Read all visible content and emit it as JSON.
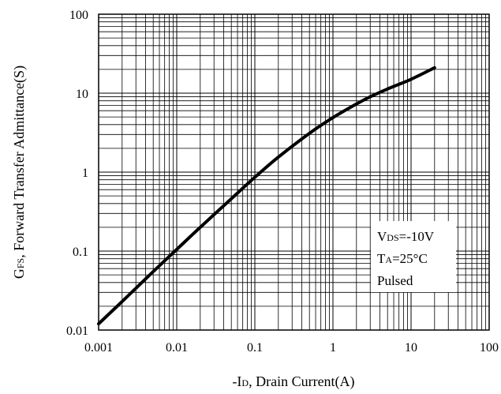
{
  "chart_data": {
    "type": "line",
    "title": "",
    "xlabel": {
      "prefix": "-I",
      "sub": "D",
      "rest": ", Drain Current(A)"
    },
    "ylabel": {
      "prefix": "G",
      "sub": "FS",
      "rest": ", Forward Transfer Admittance(S)"
    },
    "x_scale": "log",
    "y_scale": "log",
    "xlim": [
      0.001,
      100
    ],
    "ylim": [
      0.01,
      100
    ],
    "x_ticks": [
      0.001,
      0.01,
      0.1,
      1,
      10,
      100
    ],
    "x_tick_labels": [
      "0.001",
      "0.01",
      "0.1",
      "1",
      "10",
      "100"
    ],
    "y_ticks": [
      0.01,
      0.1,
      1,
      10,
      100
    ],
    "y_tick_labels": [
      "0.01",
      "0.1",
      "1",
      "10",
      "100"
    ],
    "grid": true,
    "series": [
      {
        "x": [
          0.001,
          0.002,
          0.005,
          0.01,
          0.02,
          0.05,
          0.1,
          0.2,
          0.5,
          1,
          2,
          3,
          5,
          10,
          20
        ],
        "y": [
          0.012,
          0.023,
          0.055,
          0.105,
          0.2,
          0.46,
          0.86,
          1.55,
          3.1,
          4.9,
          7.3,
          9.0,
          11.3,
          15.0,
          21.0
        ]
      }
    ],
    "annotation": {
      "lines": [
        {
          "main": "V",
          "sub": "DS",
          "rest": "=-10V"
        },
        {
          "main": "T",
          "sub": "A",
          "rest": "=25°C"
        },
        {
          "main": "Pulsed",
          "sub": "",
          "rest": ""
        }
      ]
    }
  }
}
